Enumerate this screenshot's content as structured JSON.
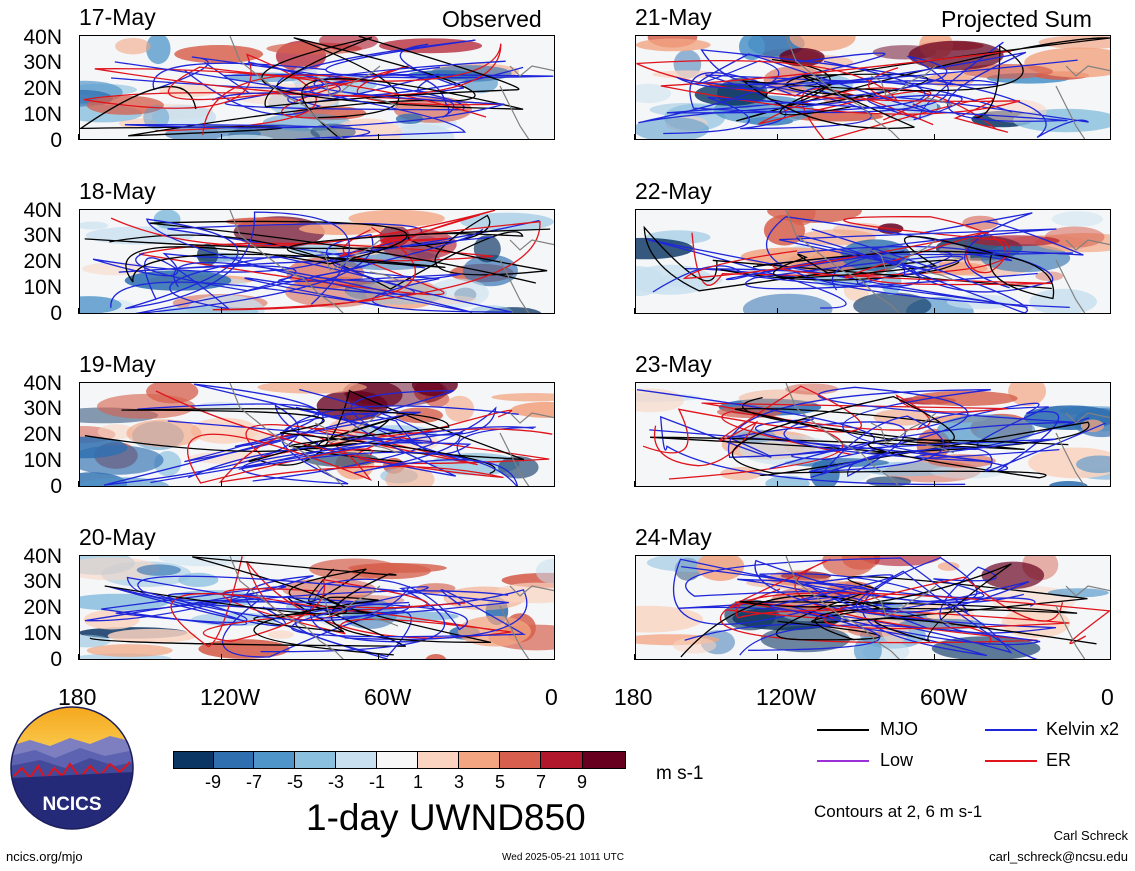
{
  "header": {
    "observed_label": "Observed",
    "projected_label": "Projected Sum"
  },
  "panels": {
    "left": [
      {
        "date": "17-May"
      },
      {
        "date": "18-May"
      },
      {
        "date": "19-May"
      },
      {
        "date": "20-May"
      }
    ],
    "right": [
      {
        "date": "21-May"
      },
      {
        "date": "22-May"
      },
      {
        "date": "23-May"
      },
      {
        "date": "24-May"
      }
    ]
  },
  "latitude_labels": [
    "40N",
    "30N",
    "20N",
    "10N",
    "0"
  ],
  "longitude_labels": [
    "180",
    "120W",
    "60W",
    "0"
  ],
  "colorbar": {
    "ticks": [
      "-9",
      "-7",
      "-5",
      "-3",
      "-1",
      "1",
      "3",
      "5",
      "7",
      "9"
    ],
    "units": "m s-1",
    "colors": [
      "#0b3563",
      "#2f6fb0",
      "#4f95c9",
      "#8cc0df",
      "#c8e0ef",
      "#f7f7f7",
      "#fad4c0",
      "#f3a582",
      "#d6604d",
      "#b2182b",
      "#67001f"
    ]
  },
  "title": "1-day UWND850",
  "legend": {
    "items": [
      {
        "label": "MJO",
        "color": "#000000"
      },
      {
        "label": "Kelvin x2",
        "color": "#1f26d9"
      },
      {
        "label": "Low",
        "color": "#9b30d9"
      },
      {
        "label": "ER",
        "color": "#e0141c"
      }
    ],
    "contours_note": "Contours at 2, 6 m s-1"
  },
  "footer": {
    "url": "ncics.org/mjo",
    "timestamp": "Wed 2025-05-21 1011 UTC",
    "author": "Carl Schreck",
    "email": "carl_schreck@ncsu.edu"
  },
  "logo": {
    "text": "NCICS"
  }
}
